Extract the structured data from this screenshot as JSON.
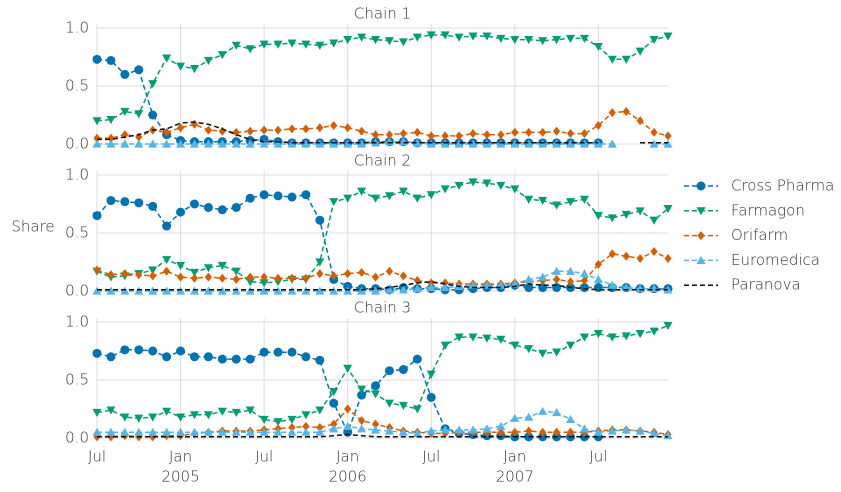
{
  "chart_data": {
    "type": "line",
    "ylabel": "Share",
    "grid": true,
    "legend": "right",
    "x": [
      "2004-07",
      "2004-08",
      "2004-09",
      "2004-10",
      "2004-11",
      "2004-12",
      "2005-01",
      "2005-02",
      "2005-03",
      "2005-04",
      "2005-05",
      "2005-06",
      "2005-07",
      "2005-08",
      "2005-09",
      "2005-10",
      "2005-11",
      "2005-12",
      "2006-01",
      "2006-02",
      "2006-03",
      "2006-04",
      "2006-05",
      "2006-06",
      "2006-07",
      "2006-08",
      "2006-09",
      "2006-10",
      "2006-11",
      "2006-12",
      "2007-01",
      "2007-02",
      "2007-03",
      "2007-04",
      "2007-05",
      "2007-06",
      "2007-07",
      "2007-08",
      "2007-09",
      "2007-10",
      "2007-11",
      "2007-12"
    ],
    "xlim": [
      "2004-07",
      "2007-12"
    ],
    "xticks": [
      {
        "value": "2004-07",
        "label": "Jul"
      },
      {
        "value": "2005-01",
        "label": "Jan",
        "year": "2005"
      },
      {
        "value": "2005-07",
        "label": "Jul"
      },
      {
        "value": "2006-01",
        "label": "Jan",
        "year": "2006"
      },
      {
        "value": "2006-07",
        "label": "Jul"
      },
      {
        "value": "2007-01",
        "label": "Jan",
        "year": "2007"
      },
      {
        "value": "2007-07",
        "label": "Jul"
      }
    ],
    "ylim": [
      0,
      1
    ],
    "yticks": [
      {
        "value": 0,
        "label": "0.0"
      },
      {
        "value": 0.5,
        "label": "0.5"
      },
      {
        "value": 1,
        "label": "1.0"
      }
    ],
    "series": [
      {
        "name": "Cross Pharma",
        "color": "#0173b2",
        "marker": "o"
      },
      {
        "name": "Farmagon",
        "color": "#029e73",
        "marker": "v"
      },
      {
        "name": "Orifarm",
        "color": "#d55e00",
        "marker": "D"
      },
      {
        "name": "Euromedica",
        "color": "#56b4e9",
        "marker": "^"
      },
      {
        "name": "Paranova",
        "color": "#111111",
        "marker": "none"
      }
    ],
    "panels": [
      {
        "title": "Chain 1",
        "series": [
          {
            "values": [
              0.73,
              0.72,
              0.6,
              0.64,
              0.25,
              0.08,
              0.03,
              0.02,
              0.02,
              0.02,
              0.02,
              0.03,
              0.04,
              0.02,
              0.01,
              0.01,
              0.01,
              0.01,
              0.01,
              0.01,
              0.02,
              0.02,
              0.02,
              0.01,
              0.01,
              0.01,
              0.01,
              0.01,
              0.01,
              0.01,
              0.01,
              0.01,
              0.01,
              0.01,
              0.01,
              0.01,
              0.01,
              null,
              null,
              null,
              null,
              null
            ]
          },
          {
            "values": [
              0.2,
              0.21,
              0.28,
              0.26,
              0.52,
              0.74,
              0.67,
              0.65,
              0.72,
              0.77,
              0.85,
              0.82,
              0.86,
              0.86,
              0.87,
              0.86,
              0.85,
              0.87,
              0.9,
              0.92,
              0.9,
              0.89,
              0.88,
              0.92,
              0.94,
              0.94,
              0.92,
              0.93,
              0.93,
              0.91,
              0.9,
              0.9,
              0.89,
              0.9,
              0.91,
              0.91,
              0.84,
              0.73,
              0.73,
              0.8,
              0.9,
              0.93
            ]
          },
          {
            "values": [
              0.05,
              0.05,
              0.08,
              0.06,
              0.12,
              0.1,
              0.14,
              0.17,
              0.12,
              0.11,
              0.1,
              0.11,
              0.12,
              0.12,
              0.13,
              0.13,
              0.14,
              0.16,
              0.14,
              0.11,
              0.08,
              0.08,
              0.09,
              0.1,
              0.07,
              0.07,
              0.07,
              0.09,
              0.08,
              0.08,
              0.1,
              0.1,
              0.1,
              0.11,
              0.09,
              0.09,
              0.16,
              0.27,
              0.28,
              0.2,
              0.1,
              0.07
            ]
          },
          {
            "values": [
              0,
              0,
              0,
              0,
              0,
              0,
              0,
              0,
              0,
              0,
              0,
              0,
              0,
              0,
              0,
              0,
              0,
              0,
              0,
              0,
              0.01,
              0.02,
              0.02,
              0.01,
              0,
              0,
              0,
              0,
              0,
              0,
              0,
              0,
              0,
              0,
              0,
              0,
              0,
              0,
              null,
              null,
              0,
              0
            ]
          },
          {
            "values": [
              0.04,
              0.04,
              0.06,
              0.08,
              0.12,
              0.13,
              0.18,
              0.19,
              0.17,
              0.13,
              0.08,
              0.04,
              0.02,
              0.02,
              0.01,
              0.01,
              0.01,
              0.01,
              0.01,
              0.01,
              0.01,
              0.01,
              0.01,
              0.01,
              0.01,
              0.01,
              0.01,
              0.01,
              0.01,
              0.01,
              0.01,
              0.01,
              0.01,
              0.01,
              0.01,
              0.01,
              0.01,
              null,
              null,
              0.01,
              0.01,
              0.01
            ]
          }
        ]
      },
      {
        "title": "Chain 2",
        "series": [
          {
            "values": [
              0.65,
              0.78,
              0.77,
              0.76,
              0.73,
              0.56,
              0.68,
              0.75,
              0.72,
              0.7,
              0.72,
              0.8,
              0.83,
              0.82,
              0.81,
              0.83,
              0.61,
              0.1,
              0.04,
              0.02,
              0.02,
              0.01,
              0.03,
              0.02,
              0.02,
              0.01,
              0.01,
              0.02,
              0.03,
              0.03,
              0.05,
              0.03,
              0.03,
              0.03,
              0.03,
              0.03,
              0.03,
              0.03,
              0.03,
              0.02,
              0.02,
              0.02
            ]
          },
          {
            "values": [
              0.17,
              0.12,
              0.13,
              0.15,
              0.18,
              0.27,
              0.22,
              0.16,
              0.2,
              0.22,
              0.17,
              0.08,
              0.07,
              0.08,
              0.1,
              0.1,
              0.25,
              0.77,
              0.8,
              0.86,
              0.8,
              0.82,
              0.86,
              0.8,
              0.83,
              0.88,
              0.91,
              0.94,
              0.93,
              0.91,
              0.88,
              0.79,
              0.78,
              0.74,
              0.77,
              0.79,
              0.65,
              0.63,
              0.66,
              0.69,
              0.61,
              0.71
            ]
          },
          {
            "values": [
              0.18,
              0.14,
              0.15,
              0.14,
              0.13,
              0.17,
              0.12,
              0.11,
              0.12,
              0.11,
              0.1,
              0.12,
              0.12,
              0.11,
              0.11,
              0.11,
              0.15,
              0.13,
              0.15,
              0.16,
              0.12,
              0.17,
              0.13,
              0.09,
              0.07,
              0.07,
              0.06,
              0.06,
              0.06,
              0.06,
              0.07,
              0.08,
              0.09,
              0.1,
              0.08,
              0.09,
              0.23,
              0.32,
              0.3,
              0.28,
              0.34,
              0.28
            ]
          },
          {
            "values": [
              0,
              0,
              0,
              0,
              0,
              0,
              0,
              0,
              0,
              0,
              0,
              0,
              0,
              0,
              0,
              0,
              0,
              0,
              0,
              0,
              0,
              0.01,
              0.01,
              0.02,
              0.03,
              0.03,
              0.04,
              0.05,
              0.05,
              0.05,
              0.06,
              0.1,
              0.12,
              0.17,
              0.17,
              0.15,
              0.1,
              0.05,
              0.03,
              0.02,
              0.02,
              0.01
            ]
          },
          {
            "values": [
              0.01,
              0.01,
              0.01,
              0.01,
              0.01,
              0.01,
              0.01,
              0.01,
              0.01,
              0.01,
              0.01,
              0.01,
              0.01,
              0.01,
              0.01,
              0.01,
              0.01,
              0.01,
              0.01,
              0.01,
              0.02,
              0.03,
              0.05,
              0.07,
              0.08,
              0.06,
              0.04,
              0.03,
              0.03,
              0.03,
              0.04,
              0.06,
              0.05,
              0.05,
              0.03,
              0.02,
              0.01,
              0.01,
              0.01,
              0.01,
              0.01,
              0.01
            ]
          }
        ]
      },
      {
        "title": "Chain 3",
        "series": [
          {
            "values": [
              0.73,
              0.7,
              0.76,
              0.76,
              0.75,
              0.7,
              0.75,
              0.7,
              0.7,
              0.68,
              0.68,
              0.68,
              0.74,
              0.74,
              0.74,
              0.7,
              0.67,
              0.3,
              0.05,
              0.37,
              0.45,
              0.58,
              0.59,
              0.68,
              0.35,
              0.08,
              0.04,
              0.03,
              0.02,
              0.02,
              0.01,
              0.01,
              0.01,
              0.01,
              0.01,
              0.01,
              0.01,
              null,
              null,
              null,
              null,
              null
            ]
          },
          {
            "values": [
              0.22,
              0.24,
              0.18,
              0.17,
              0.18,
              0.23,
              0.18,
              0.2,
              0.2,
              0.23,
              0.22,
              0.24,
              0.16,
              0.14,
              0.16,
              0.2,
              0.24,
              0.4,
              0.6,
              0.42,
              0.38,
              0.3,
              0.28,
              0.25,
              0.55,
              0.8,
              0.87,
              0.87,
              0.86,
              0.85,
              0.8,
              0.77,
              0.73,
              0.74,
              0.8,
              0.87,
              0.9,
              0.87,
              0.88,
              0.9,
              0.92,
              0.97
            ]
          },
          {
            "values": [
              0.01,
              0.01,
              0.02,
              0.01,
              0.01,
              0.02,
              0.02,
              0.04,
              0.05,
              0.06,
              0.06,
              0.06,
              0.07,
              0.08,
              0.09,
              0.1,
              0.09,
              0.12,
              0.25,
              0.15,
              0.12,
              0.09,
              0.06,
              0.05,
              0.04,
              0.04,
              0.05,
              0.05,
              0.05,
              0.05,
              0.05,
              0.06,
              0.05,
              0.05,
              0.05,
              0.05,
              0.06,
              0.07,
              0.07,
              0.06,
              0.05,
              0.03
            ]
          },
          {
            "values": [
              0.05,
              0.05,
              0.05,
              0.05,
              0.05,
              0.05,
              0.05,
              0.05,
              0.05,
              0.05,
              0.05,
              0.05,
              0.05,
              0.05,
              0.05,
              0.05,
              0.05,
              0.08,
              0.1,
              0.08,
              0.07,
              0.06,
              0.05,
              0.04,
              0.06,
              0.07,
              0.07,
              0.07,
              0.08,
              0.1,
              0.17,
              0.18,
              0.23,
              0.22,
              0.16,
              0.08,
              0.05,
              0.06,
              0.07,
              0.06,
              0.04,
              0.02
            ]
          },
          {
            "values": [
              0.01,
              0.01,
              0.01,
              0.01,
              0.01,
              0.01,
              0.01,
              0.01,
              0.01,
              0.01,
              0.01,
              0.01,
              0.01,
              0.01,
              0.01,
              0.01,
              0.01,
              0.02,
              0.03,
              0.02,
              0.01,
              0.01,
              0.01,
              0.01,
              0.01,
              0.01,
              0.01,
              0.01,
              0.01,
              0.01,
              0.01,
              0.01,
              0.01,
              0.01,
              0.01,
              0.01,
              0.01,
              0.01,
              0.01,
              0.01,
              0.01,
              0.01
            ]
          }
        ]
      }
    ]
  }
}
